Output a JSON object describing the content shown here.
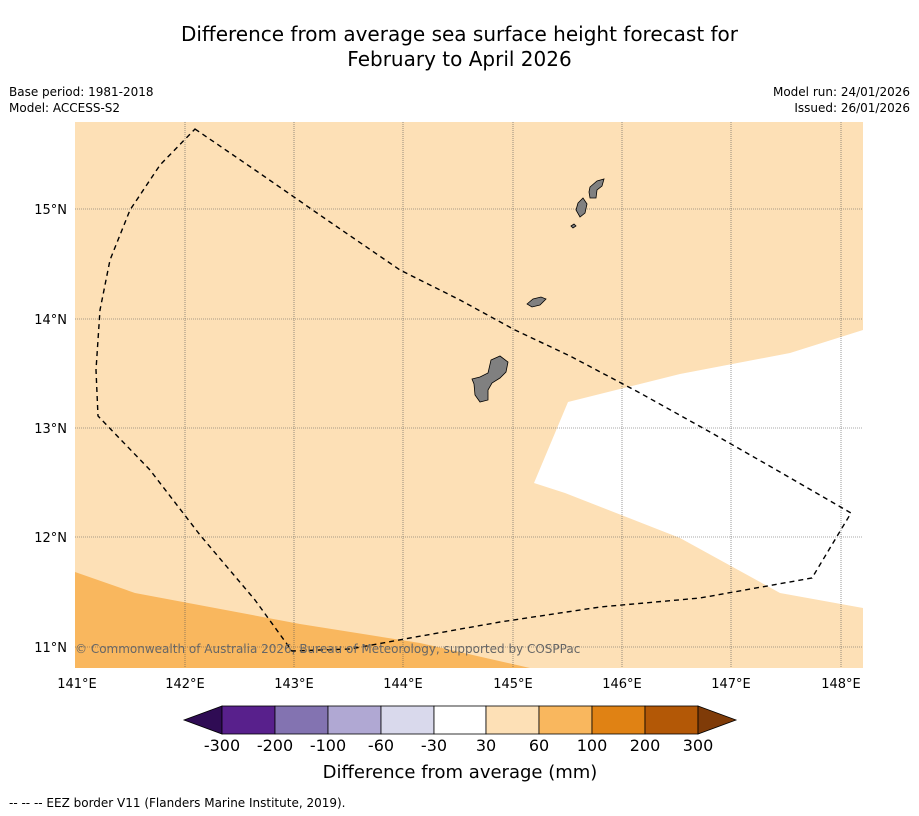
{
  "title_line1": "Difference from average sea surface height forecast for",
  "title_line2": "February to April 2026",
  "meta_left": {
    "base_period": "Base period: 1981-2018",
    "model": "Model: ACCESS-S2"
  },
  "meta_right": {
    "model_run": "Model run: 24/01/2026",
    "issued": "Issued: 26/01/2026"
  },
  "map": {
    "lon_ticks": [
      "141°E",
      "142°E",
      "143°E",
      "144°E",
      "145°E",
      "146°E",
      "147°E",
      "148°E"
    ],
    "lat_ticks": [
      "15°N",
      "14°N",
      "13°N",
      "12°N",
      "11°N"
    ],
    "copyright": "© Commonwealth of Australia 2026, Bureau of Meteorology, supported by COSPPac",
    "colors": {
      "band_30_60": "#fde0b6",
      "band_60_100": "#f9b75e",
      "band_neutral": "#ffffff",
      "land": "#808080"
    }
  },
  "colorbar": {
    "ticks": [
      "-300",
      "-200",
      "-100",
      "-60",
      "-30",
      "30",
      "60",
      "100",
      "200",
      "300"
    ],
    "colors": [
      "#2f0c54",
      "#58208c",
      "#8373b1",
      "#b0a8d3",
      "#d9d9ec",
      "#ffffff",
      "#fde0b6",
      "#f9b75e",
      "#e08214",
      "#b35806",
      "#7f3b08"
    ],
    "label": "Difference from average (mm)"
  },
  "footnote": "--  --  -- EEZ border V11 (Flanders Marine Institute, 2019)."
}
